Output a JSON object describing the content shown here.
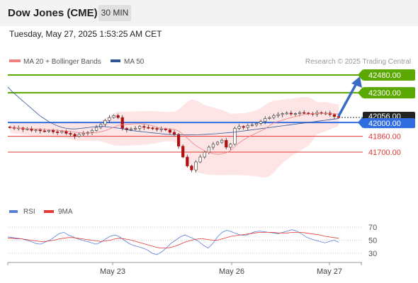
{
  "header": {
    "title": "Dow Jones (CME)",
    "timeframe": "30 MIN",
    "datetime": "Tuesday, May 27, 2025 1:53:25 AM CET"
  },
  "legend": {
    "ma20": {
      "label": "MA 20 + Bollinger Bands",
      "color": "#f08080"
    },
    "ma50": {
      "label": "MA 50",
      "color": "#2f5597"
    },
    "credit": "Research © 2025 Trading Central"
  },
  "levels": [
    {
      "value": 42480,
      "label": "42480.00",
      "kind": "target",
      "color": "#5aa800"
    },
    {
      "value": 42300,
      "label": "42300.00",
      "kind": "target",
      "color": "#5aa800"
    },
    {
      "value": 42000,
      "label": "42000.00",
      "kind": "pivot",
      "color": "#2f6de1"
    },
    {
      "value": 41860,
      "label": "41860.00",
      "kind": "support",
      "color": "#e53935"
    },
    {
      "value": 41700,
      "label": "41700.00",
      "kind": "support",
      "color": "#e53935"
    }
  ],
  "current_price": {
    "value": 42056,
    "label": "42056.00"
  },
  "rsi_legend": {
    "rsi": {
      "label": "RSI",
      "color": "#5b7fd8"
    },
    "ma9": {
      "label": "9MA",
      "color": "#e53935"
    }
  },
  "chart_data": {
    "type": "candlestick",
    "x_ticks": [
      "May 23",
      "May 26",
      "May 27"
    ],
    "y_ticks": [
      "42480.00",
      "42300.00",
      "42056.00",
      "42000.00",
      "41860.00",
      "41700.00"
    ],
    "ylim": [
      41400,
      42480
    ],
    "price_series": [
      {
        "name": "price",
        "values": [
          41950,
          41940,
          41945,
          41930,
          41935,
          41920,
          41925,
          41915,
          41910,
          41920,
          41905,
          41900,
          41910,
          41890,
          41880,
          41860,
          41880,
          41890,
          41900,
          41920,
          41950,
          41980,
          42020,
          42050,
          42070,
          42050,
          41940,
          41925,
          41935,
          41940,
          41960,
          41950,
          41945,
          41940,
          41930,
          41935,
          41925,
          41900,
          41880,
          41760,
          41650,
          41560,
          41520,
          41600,
          41650,
          41700,
          41750,
          41780,
          41800,
          41820,
          41750,
          41780,
          41940,
          41960,
          41950,
          41970,
          41975,
          41990,
          42010,
          42040,
          42050,
          42070,
          42080,
          42090,
          42095,
          42085,
          42090,
          42100,
          42095,
          42090,
          42085,
          42100,
          42090,
          42095,
          42080,
          42060,
          42050
        ]
      }
    ],
    "ma50": [
      42360,
      42310,
      42270,
      42230,
      42190,
      42150,
      42110,
      42070,
      42040,
      42010,
      41985,
      41965,
      41950,
      41940,
      41935,
      41935,
      41940,
      41945,
      41950,
      41955,
      41960,
      41960,
      41955,
      41950,
      41945,
      41940,
      41930,
      41920,
      41915,
      41910,
      41905,
      41900,
      41895,
      41890,
      41885,
      41880,
      41878,
      41876,
      41875,
      41874,
      41874,
      41875,
      41876,
      41878,
      41880,
      41883,
      41886,
      41890,
      41894,
      41898,
      41902,
      41908,
      41914,
      41920,
      41926,
      41932,
      41938,
      41944,
      41950,
      41956,
      41962,
      41968,
      41974,
      41980,
      41986,
      41992,
      41998,
      42004,
      42010,
      42016,
      42022,
      42028,
      42034,
      42040
    ],
    "rsi": [
      55,
      54,
      53,
      52,
      50,
      48,
      45,
      44,
      47,
      50,
      55,
      60,
      62,
      58,
      55,
      52,
      50,
      48,
      46,
      44,
      47,
      52,
      56,
      58,
      55,
      50,
      45,
      42,
      40,
      38,
      35,
      30,
      28,
      32,
      38,
      45,
      50,
      55,
      58,
      55,
      52,
      48,
      42,
      38,
      45,
      55,
      62,
      65,
      63,
      60,
      58,
      57,
      60,
      63,
      64,
      63,
      62,
      61,
      60,
      62,
      64,
      66,
      64,
      60,
      55,
      52,
      50,
      48,
      46,
      48,
      50,
      47
    ],
    "rsi_ma": [
      53,
      53,
      52,
      52,
      51,
      50,
      49,
      48,
      48,
      49,
      50,
      52,
      53,
      54,
      54,
      53,
      52,
      51,
      50,
      49,
      48,
      49,
      50,
      52,
      53,
      52,
      51,
      49,
      47,
      45,
      43,
      41,
      39,
      38,
      38,
      39,
      41,
      44,
      47,
      49,
      51,
      52,
      52,
      51,
      50,
      50,
      52,
      54,
      56,
      57,
      58,
      59,
      60,
      61,
      62,
      62,
      62,
      62,
      61,
      61,
      61,
      62,
      62,
      62,
      61,
      60,
      59,
      58,
      56,
      55,
      54,
      53
    ],
    "rsi_ticks": [
      70,
      50,
      30
    ],
    "rsi_ylim": [
      20,
      80
    ],
    "title": "",
    "xlabel": "",
    "ylabel": ""
  }
}
